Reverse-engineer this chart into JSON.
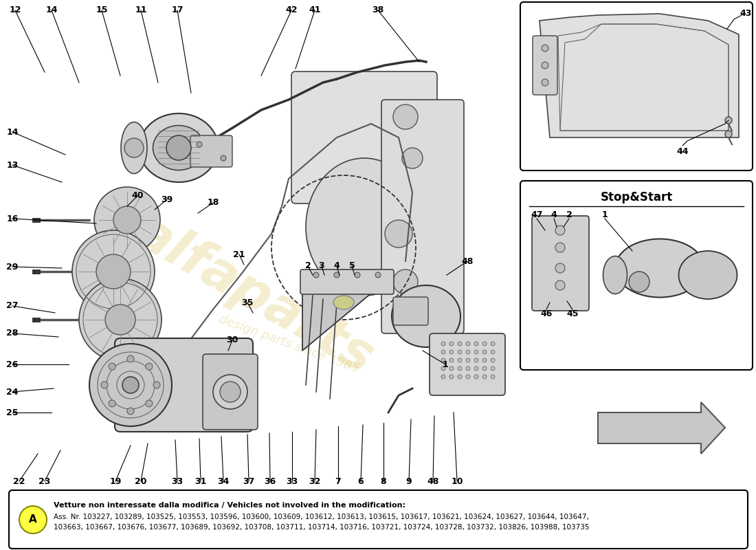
{
  "bg_color": "#ffffff",
  "watermark_text1": "alfaparts",
  "watermark_text2": "design parts since 1985",
  "watermark_color": "#d4b840",
  "stop_start_title": "Stop&Start",
  "note_label": "A",
  "note_line1": "Vetture non interessate dalla modifica / Vehicles not involved in the modification:",
  "note_line2": "Ass. Nr. 103227, 103289, 103525, 103553, 103596, 103600, 103609, 103612, 103613, 103615, 103617, 103621, 103624, 103627, 103644, 103647,",
  "note_line3": "103663, 103667, 103676, 103677, 103689, 103692, 103708, 103711, 103714, 103716, 103721, 103724, 103728, 103732, 103826, 103988, 103735",
  "box_border_color": "#000000",
  "note_bg": "#ffffff",
  "note_border": "#000000",
  "line_color": "#000000",
  "part_gray": "#d0d0d0",
  "part_dark": "#888888",
  "part_light": "#e8e8e8",
  "part_mid": "#b8b8b8"
}
